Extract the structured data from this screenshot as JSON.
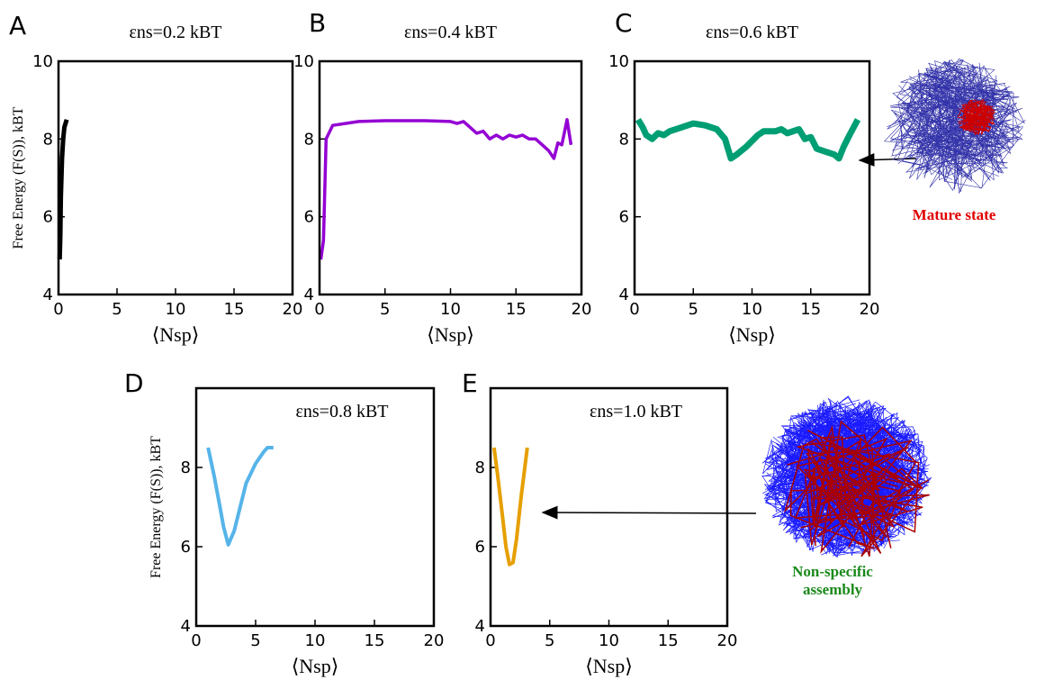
{
  "chart_data": [
    {
      "type": "line",
      "label": "A",
      "title": "εns=0.2 kBT",
      "xlabel": "⟨Nsp⟩",
      "ylabel": "Free Energy (F(S)), kBT",
      "xlim": [
        0,
        20
      ],
      "xticks": [
        0,
        5,
        10,
        15,
        20
      ],
      "ylim": [
        4,
        10
      ],
      "yticks": [
        4,
        6,
        8,
        10
      ],
      "series": [
        {
          "color": "#000000",
          "x": [
            0.1,
            0.15,
            0.2,
            0.3,
            0.4,
            0.5,
            0.6,
            0.7
          ],
          "values": [
            4.9,
            5.5,
            6.5,
            7.5,
            8.0,
            8.3,
            8.4,
            8.5
          ]
        }
      ]
    },
    {
      "type": "line",
      "label": "B",
      "title": "εns=0.4 kBT",
      "xlabel": "⟨Nsp⟩",
      "xlim": [
        0,
        20
      ],
      "xticks": [
        0,
        5,
        10,
        15,
        20
      ],
      "ylim": [
        4,
        10
      ],
      "yticks": [
        4,
        6,
        8,
        10
      ],
      "series": [
        {
          "color": "#9400d3",
          "x": [
            0.1,
            0.3,
            0.5,
            1,
            3,
            5,
            8,
            10,
            10.5,
            11,
            11.5,
            12,
            12.5,
            13,
            13.5,
            14,
            14.5,
            15,
            15.5,
            16,
            16.5,
            17,
            17.5,
            17.9,
            18.2,
            18.5,
            18.9,
            19.2
          ],
          "values": [
            4.9,
            5.4,
            8.0,
            8.35,
            8.45,
            8.47,
            8.47,
            8.45,
            8.4,
            8.45,
            8.3,
            8.15,
            8.2,
            8.0,
            8.1,
            8.0,
            8.1,
            8.05,
            8.1,
            8.0,
            8.0,
            7.85,
            7.7,
            7.5,
            7.9,
            7.85,
            8.5,
            7.85
          ]
        }
      ]
    },
    {
      "type": "line",
      "label": "C",
      "title": "εns=0.6 kBT",
      "xlabel": "⟨Nsp⟩",
      "annotation": "Mature state",
      "xlim": [
        0,
        20
      ],
      "xticks": [
        0,
        5,
        10,
        15,
        20
      ],
      "ylim": [
        4,
        10
      ],
      "yticks": [
        4,
        6,
        8,
        10
      ],
      "series": [
        {
          "color": "#009e73",
          "x": [
            0.3,
            0.7,
            1,
            1.5,
            2,
            2.5,
            3,
            4,
            5,
            6,
            7,
            7.7,
            8.2,
            8.7,
            9.5,
            10.5,
            11,
            12,
            12.5,
            13,
            14,
            14.5,
            15,
            15.5,
            16,
            16.5,
            17,
            17.4,
            17.8,
            18.3,
            19
          ],
          "values": [
            8.5,
            8.3,
            8.1,
            8.0,
            8.15,
            8.1,
            8.2,
            8.3,
            8.4,
            8.35,
            8.25,
            8.0,
            7.5,
            7.6,
            7.8,
            8.1,
            8.2,
            8.2,
            8.25,
            8.15,
            8.25,
            8.0,
            8.05,
            7.75,
            7.7,
            7.65,
            7.6,
            7.5,
            7.8,
            8.1,
            8.5
          ]
        }
      ]
    },
    {
      "type": "line",
      "label": "D",
      "title": "εns=0.8 kBT",
      "xlabel": "⟨Nsp⟩",
      "ylabel": "Free Energy (F(S)), kBT",
      "xlim": [
        0,
        20
      ],
      "xticks": [
        0,
        5,
        10,
        15,
        20
      ],
      "ylim": [
        4,
        10
      ],
      "yticks": [
        4,
        6,
        8
      ],
      "series": [
        {
          "color": "#56b4e9",
          "x": [
            1.0,
            1.5,
            2,
            2.3,
            2.7,
            3.2,
            3.7,
            4.2,
            5,
            5.7,
            6,
            6.5
          ],
          "values": [
            8.5,
            7.8,
            7.0,
            6.5,
            6.05,
            6.4,
            7.0,
            7.6,
            8.1,
            8.4,
            8.5,
            8.5
          ]
        }
      ]
    },
    {
      "type": "line",
      "label": "E",
      "title": "εns=1.0 kBT",
      "xlabel": "⟨Nsp⟩",
      "annotation": "Non-specific assembly",
      "xlim": [
        0,
        20
      ],
      "xticks": [
        0,
        5,
        10,
        15,
        20
      ],
      "ylim": [
        4,
        10
      ],
      "yticks": [
        4,
        6,
        8
      ],
      "series": [
        {
          "color": "#e69f00",
          "x": [
            0.3,
            0.6,
            1.0,
            1.3,
            1.6,
            1.9,
            2.2,
            2.6,
            2.9,
            3.1
          ],
          "values": [
            8.5,
            7.8,
            6.8,
            6.0,
            5.55,
            5.6,
            6.2,
            7.3,
            8.0,
            8.5
          ]
        }
      ]
    }
  ]
}
